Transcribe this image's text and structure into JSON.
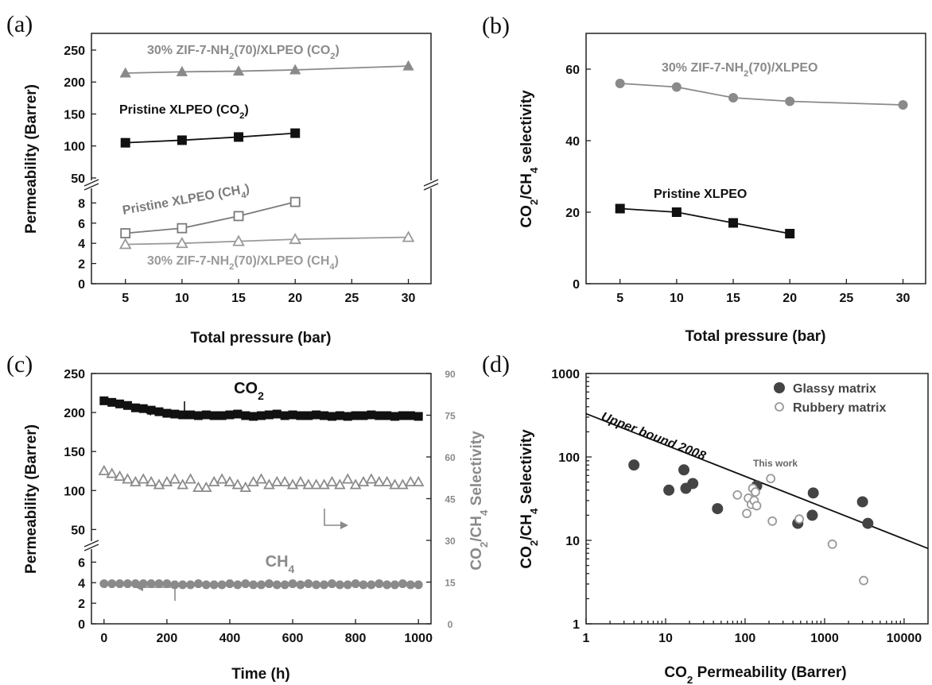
{
  "chart_data": [
    {
      "id": "a",
      "panel": "(a)",
      "type": "line",
      "xlabel": "Total pressure (bar)",
      "ylabel": "Permeability (Barrer)",
      "xlim": [
        2,
        32
      ],
      "xticks": [
        5,
        10,
        15,
        20,
        25,
        30
      ],
      "ylim_upper": [
        30,
        265
      ],
      "ylim_lower": [
        0,
        10
      ],
      "yticks_upper": [
        50,
        100,
        150,
        200,
        250
      ],
      "yticks_lower": [
        0,
        2,
        4,
        6,
        8
      ],
      "broken_axis": true,
      "series": [
        {
          "name": "30% ZIF-7-NH2(70)/XLPEO (CO2)",
          "label_parts": [
            "30% ZIF-7-NH",
            "2",
            "(70)/XLPEO (CO",
            "2",
            ")"
          ],
          "segment": "upper",
          "marker": "filled-triangle",
          "color": "#8a8a8a",
          "x": [
            5,
            10,
            15,
            20,
            30
          ],
          "y": [
            214,
            216,
            217,
            219,
            225
          ]
        },
        {
          "name": "Pristine XLPEO (CO2)",
          "label_parts": [
            "Pristine XLPEO (CO",
            "2",
            ")"
          ],
          "segment": "upper",
          "marker": "filled-square",
          "color": "#111111",
          "x": [
            5,
            10,
            15,
            20
          ],
          "y": [
            105,
            109,
            114,
            120
          ]
        },
        {
          "name": "Pristine XLPEO (CH4)",
          "label_parts": [
            "Pristine XLPEO (CH",
            "4",
            ")"
          ],
          "segment": "lower",
          "marker": "open-square",
          "color": "#7a7a7a",
          "x": [
            5,
            10,
            15,
            20
          ],
          "y": [
            5.0,
            5.5,
            6.7,
            8.1
          ]
        },
        {
          "name": "30% ZIF-7-NH2(70)/XLPEO (CH4)",
          "label_parts": [
            "30% ZIF-7-NH",
            "2",
            "(70)/XLPEO (CH",
            "4",
            ")"
          ],
          "segment": "lower",
          "marker": "open-triangle",
          "color": "#9a9a9a",
          "x": [
            5,
            10,
            15,
            20,
            30
          ],
          "y": [
            3.9,
            4.0,
            4.2,
            4.4,
            4.6
          ]
        }
      ]
    },
    {
      "id": "b",
      "panel": "(b)",
      "type": "line",
      "xlabel": "Total pressure (bar)",
      "ylabel_parts": [
        "CO",
        "2",
        "/CH",
        "4",
        " selectivity"
      ],
      "xlim": [
        2,
        32
      ],
      "xticks": [
        5,
        10,
        15,
        20,
        25,
        30
      ],
      "ylim": [
        0,
        70
      ],
      "yticks": [
        0,
        20,
        40,
        60
      ],
      "series": [
        {
          "name": "30% ZIF-7-NH2(70)/XLPEO",
          "label_parts": [
            "30% ZIF-7-NH",
            "2",
            "(70)/XLPEO"
          ],
          "marker": "filled-circle",
          "color": "#8a8a8a",
          "x": [
            5,
            10,
            15,
            20,
            30
          ],
          "y": [
            56,
            55,
            52,
            51,
            50
          ]
        },
        {
          "name": "Pristine XLPEO",
          "label_parts": [
            "Pristine XLPEO"
          ],
          "marker": "filled-square",
          "color": "#111111",
          "x": [
            5,
            10,
            15,
            20
          ],
          "y": [
            21,
            20,
            17,
            14
          ]
        }
      ]
    },
    {
      "id": "c",
      "panel": "(c)",
      "type": "scatter",
      "xlabel": "Time (h)",
      "ylabel": "Permeability (Barrer)",
      "y2label_parts": [
        "CO",
        "2",
        "/CH",
        "4",
        " Selectivity"
      ],
      "xlim": [
        -40,
        1040
      ],
      "xticks": [
        0,
        200,
        400,
        600,
        800,
        1000
      ],
      "ylim_upper": [
        30,
        250
      ],
      "ylim_lower": [
        0,
        7.5
      ],
      "yticks_upper": [
        50,
        100,
        150,
        200,
        250
      ],
      "yticks_lower": [
        0,
        2,
        4,
        6
      ],
      "y2lim": [
        0,
        90
      ],
      "y2ticks": [
        0,
        15,
        30,
        45,
        60,
        75,
        90
      ],
      "broken_axis": true,
      "series": [
        {
          "name": "CO2",
          "label_parts": [
            "CO",
            "2"
          ],
          "axis": "left-upper",
          "marker": "filled-square",
          "color": "#111111",
          "x": [
            0,
            25,
            50,
            75,
            100,
            125,
            150,
            175,
            200,
            225,
            250,
            275,
            300,
            325,
            350,
            375,
            400,
            425,
            450,
            475,
            500,
            525,
            550,
            575,
            600,
            625,
            650,
            675,
            700,
            725,
            750,
            775,
            800,
            825,
            850,
            875,
            900,
            925,
            950,
            975,
            1000
          ],
          "y": [
            215,
            213,
            211,
            209,
            206,
            205,
            203,
            201,
            199,
            198,
            197,
            197,
            196,
            197,
            196,
            196,
            197,
            198,
            196,
            195,
            196,
            197,
            198,
            196,
            197,
            196,
            196,
            197,
            196,
            195,
            196,
            195,
            196,
            196,
            197,
            196,
            196,
            195,
            196,
            196,
            195
          ]
        },
        {
          "name": "CO2/CH4 selectivity",
          "axis": "right",
          "marker": "open-triangle",
          "color": "#8a8a8a",
          "x": [
            0,
            25,
            50,
            75,
            100,
            125,
            150,
            175,
            200,
            225,
            250,
            275,
            300,
            325,
            350,
            375,
            400,
            425,
            450,
            475,
            500,
            525,
            550,
            575,
            600,
            625,
            650,
            675,
            700,
            725,
            750,
            775,
            800,
            825,
            850,
            875,
            900,
            925,
            950,
            975,
            1000
          ],
          "y": [
            55,
            54,
            53,
            52,
            51,
            52,
            51,
            50,
            51,
            52,
            50,
            52,
            49,
            49,
            51,
            52,
            51,
            50,
            49,
            51,
            52,
            50,
            51,
            51,
            50,
            51,
            50,
            50,
            50,
            51,
            50,
            52,
            50,
            51,
            52,
            51,
            51,
            50,
            50,
            51,
            51
          ]
        },
        {
          "name": "CH4",
          "label_parts": [
            "CH",
            "4"
          ],
          "axis": "left-lower",
          "marker": "filled-circle",
          "color": "#8a8a8a",
          "x": [
            0,
            25,
            50,
            75,
            100,
            125,
            150,
            175,
            200,
            225,
            250,
            275,
            300,
            325,
            350,
            375,
            400,
            425,
            450,
            475,
            500,
            525,
            550,
            575,
            600,
            625,
            650,
            675,
            700,
            725,
            750,
            775,
            800,
            825,
            850,
            875,
            900,
            925,
            950,
            975,
            1000
          ],
          "y": [
            3.9,
            3.9,
            3.9,
            3.9,
            3.9,
            3.9,
            3.9,
            3.9,
            3.9,
            3.8,
            3.8,
            3.8,
            3.9,
            3.8,
            3.8,
            3.8,
            3.9,
            3.8,
            3.9,
            3.8,
            3.8,
            3.9,
            3.8,
            3.8,
            3.9,
            3.8,
            3.9,
            3.8,
            3.8,
            3.9,
            3.8,
            3.8,
            3.9,
            3.8,
            3.8,
            3.9,
            3.8,
            3.8,
            3.9,
            3.8,
            3.8
          ]
        }
      ]
    },
    {
      "id": "d",
      "panel": "(d)",
      "type": "scatter",
      "xscale": "log",
      "yscale": "log",
      "xlabel_parts": [
        "CO",
        "2",
        " Permeability (Barrer)"
      ],
      "ylabel_parts": [
        "CO",
        "2",
        "/CH",
        "4",
        " Selectivity"
      ],
      "xlim": [
        1,
        20000
      ],
      "ylim": [
        1,
        1000
      ],
      "xticks": [
        1,
        10,
        100,
        1000,
        10000
      ],
      "yticks": [
        1,
        10,
        100,
        1000
      ],
      "upper_bound": {
        "label": "Upper bound 2008",
        "x": [
          1,
          20000
        ],
        "y": [
          330,
          8
        ]
      },
      "annotation": "This work",
      "legend_position": "top-right",
      "series": [
        {
          "name": "Glassy matrix",
          "marker": "filled-circle",
          "color": "#444444",
          "x": [
            4,
            11,
            17,
            18,
            22,
            45,
            140,
            460,
            700,
            720,
            3000,
            3500
          ],
          "y": [
            80,
            40,
            70,
            42,
            48,
            24,
            45,
            16,
            20,
            37,
            29,
            16
          ]
        },
        {
          "name": "Rubbery matrix",
          "marker": "open-circle",
          "color": "#999999",
          "x": [
            80,
            105,
            110,
            120,
            125,
            130,
            135,
            140,
            210,
            220,
            480,
            1250,
            3100
          ],
          "y": [
            35,
            21,
            32,
            27,
            42,
            30,
            38,
            26,
            55,
            17,
            18,
            9,
            3.3
          ]
        }
      ]
    }
  ]
}
